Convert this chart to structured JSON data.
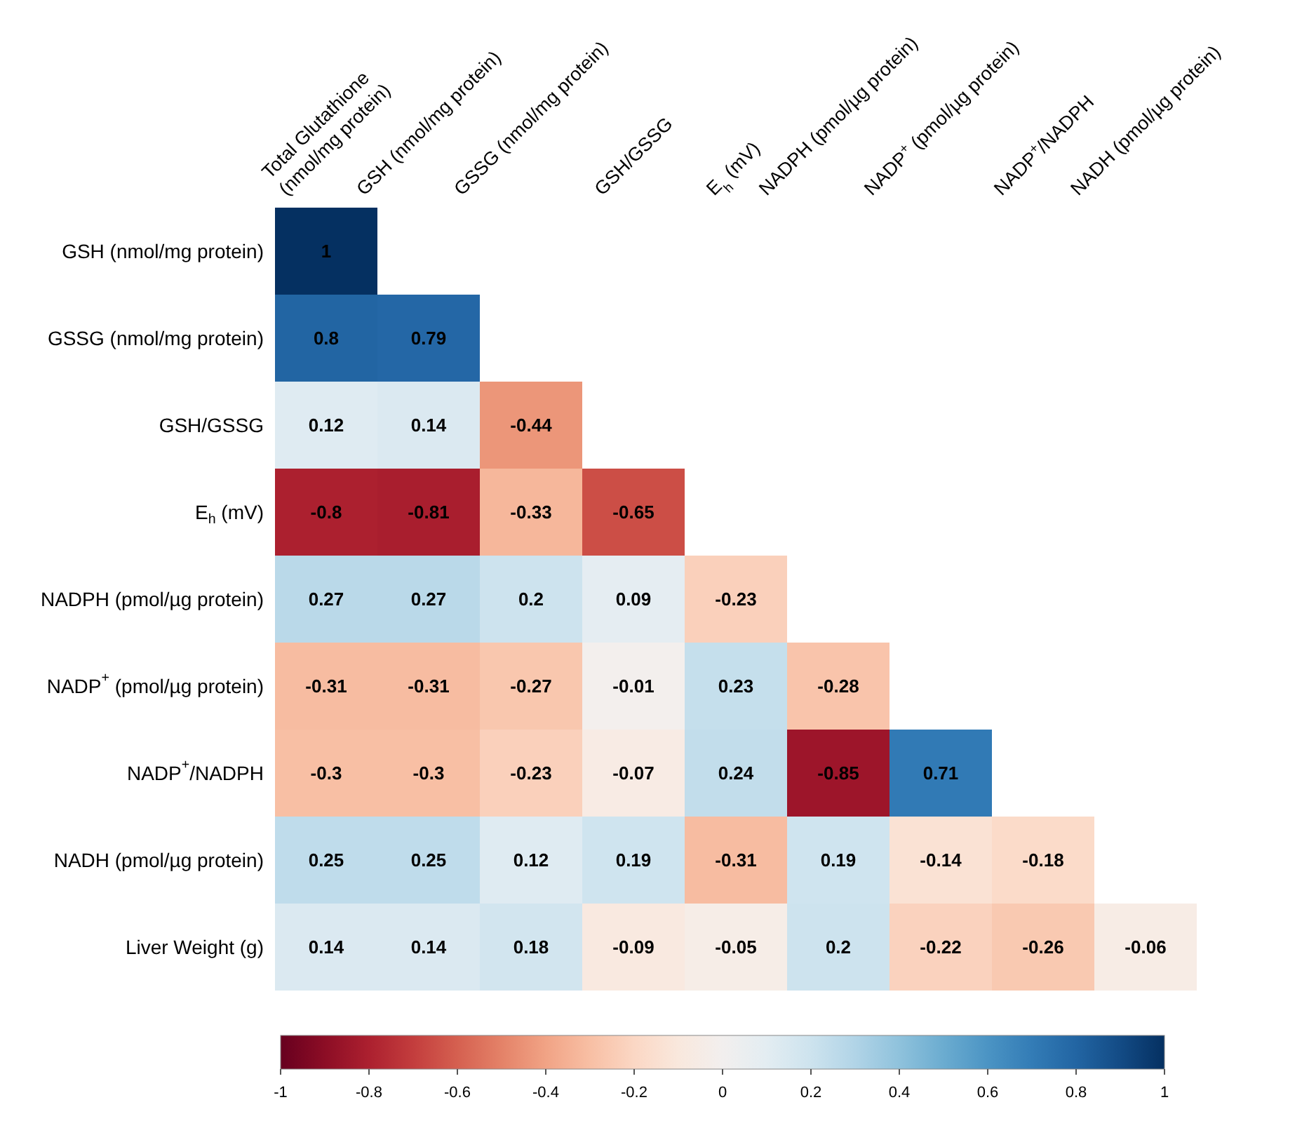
{
  "chart_data": {
    "type": "heatmap",
    "categories": [
      "Total Glutathione (nmol/mg protein)",
      "GSH (nmol/mg protein)",
      "GSSG (nmol/mg protein)",
      "GSH/GSSG",
      "E$_{h}$ (mV)",
      "NADPH (pmol/µg protein)",
      "NADP$^{+}$ (pmol/µg protein)",
      "NADP$^{+}$/NADPH",
      "NADH (pmol/µg protein)"
    ],
    "y_categories": [
      "GSH (nmol/mg protein)",
      "GSSG (nmol/mg protein)",
      "GSH/GSSG",
      "E$_{h}$ (mV)",
      "NADPH (pmol/µg protein)",
      "NADP$^{+}$ (pmol/µg protein)",
      "NADP$^{+}$/NADPH",
      "NADH (pmol/µg protein)",
      "Liver Weight (g)"
    ],
    "cells": [
      [
        1,
        null,
        null,
        null,
        null,
        null,
        null,
        null,
        null
      ],
      [
        0.8,
        0.79,
        null,
        null,
        null,
        null,
        null,
        null,
        null
      ],
      [
        0.12,
        0.14,
        -0.44,
        null,
        null,
        null,
        null,
        null,
        null
      ],
      [
        -0.8,
        -0.81,
        -0.33,
        -0.65,
        null,
        null,
        null,
        null,
        null
      ],
      [
        0.27,
        0.27,
        0.2,
        0.09,
        -0.23,
        null,
        null,
        null,
        null
      ],
      [
        -0.31,
        -0.31,
        -0.27,
        -0.01,
        0.23,
        -0.28,
        null,
        null,
        null
      ],
      [
        -0.3,
        -0.3,
        -0.23,
        -0.07,
        0.24,
        -0.85,
        0.71,
        null,
        null
      ],
      [
        0.25,
        0.25,
        0.12,
        0.19,
        -0.31,
        0.19,
        -0.14,
        -0.18,
        null
      ],
      [
        0.14,
        0.14,
        0.18,
        -0.09,
        -0.05,
        0.2,
        -0.22,
        -0.26,
        -0.06
      ]
    ],
    "data_labels": true,
    "clim": [
      -1,
      1
    ],
    "cticks": [
      -1,
      -0.8,
      -0.6,
      -0.4,
      -0.2,
      0,
      0.2,
      0.4,
      0.6,
      0.8,
      1
    ]
  }
}
